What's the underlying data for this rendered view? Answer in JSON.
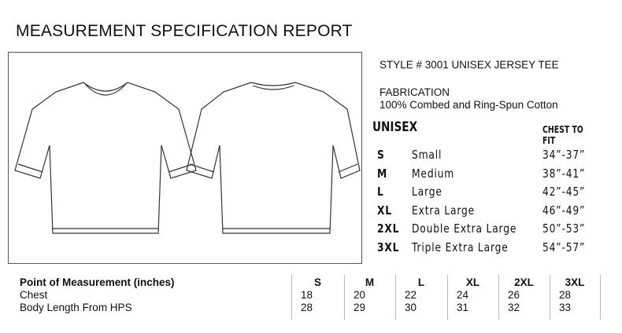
{
  "title": "MEASUREMENT SPECIFICATION REPORT",
  "style_line": "STYLE # 3001  UNISEX JERSEY TEE",
  "fabrication_label": "FABRICATION",
  "fabrication_value": "100% Combed and Ring-Spun Cotton",
  "fit_chart": {
    "heading": "UNISEX",
    "column_heading": "CHEST TO FIT",
    "rows": [
      {
        "size": "S",
        "name": "Small",
        "chest": "34”-37”"
      },
      {
        "size": "M",
        "name": "Medium",
        "chest": "38”-41”"
      },
      {
        "size": "L",
        "name": "Large",
        "chest": "42”-45”"
      },
      {
        "size": "XL",
        "name": "Extra Large",
        "chest": "46”-49”"
      },
      {
        "size": "2XL",
        "name": "Double Extra Large",
        "chest": "50”-53”"
      },
      {
        "size": "3XL",
        "name": "Triple Extra Large",
        "chest": "54”-57”"
      }
    ]
  },
  "measurements": {
    "header": "Point of Measurement (inches)",
    "sizes": [
      "S",
      "M",
      "L",
      "XL",
      "2XL",
      "3XL"
    ],
    "rows": [
      {
        "label": "Chest",
        "values": [
          "18",
          "20",
          "22",
          "24",
          "26",
          "28"
        ]
      },
      {
        "label": "Body Length From HPS",
        "values": [
          "28",
          "29",
          "30",
          "31",
          "32",
          "33"
        ]
      }
    ]
  }
}
